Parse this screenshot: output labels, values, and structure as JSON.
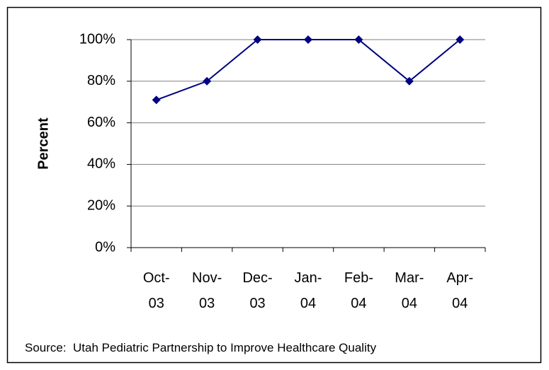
{
  "chart_data": {
    "type": "line",
    "y_label": "Percent",
    "source": "Source:  Utah Pediatric Partnership to Improve Healthcare Quality",
    "categories": [
      "Oct-03",
      "Nov-03",
      "Dec-03",
      "Jan-04",
      "Feb-04",
      "Mar-04",
      "Apr-04"
    ],
    "series": [
      {
        "name": "Percent",
        "color": "#000080",
        "values": [
          71,
          80,
          100,
          100,
          100,
          80,
          100
        ]
      }
    ],
    "ylim": [
      0,
      100
    ],
    "yticks": [
      {
        "value": 0,
        "label": "0%"
      },
      {
        "value": 20,
        "label": "20%"
      },
      {
        "value": 40,
        "label": "40%"
      },
      {
        "value": 60,
        "label": "60%"
      },
      {
        "value": 80,
        "label": "80%"
      },
      {
        "value": 100,
        "label": "100%"
      }
    ],
    "grid": true
  }
}
